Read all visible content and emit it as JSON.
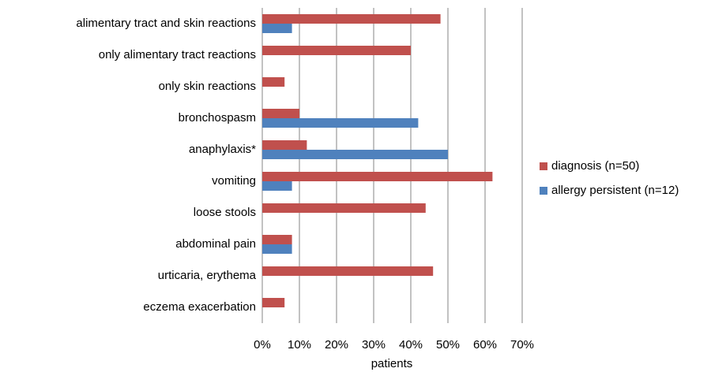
{
  "chart_data": {
    "type": "bar",
    "orientation": "horizontal",
    "x_label": "patients",
    "categories": [
      "alimentary tract and skin reactions",
      "only alimentary tract reactions",
      "only skin reactions",
      "bronchospasm",
      "anaphylaxis*",
      "vomiting",
      "loose stools",
      "abdominal pain",
      "urticaria, erythema",
      "eczema exacerbation"
    ],
    "series": [
      {
        "name": "diagnosis (n=50)",
        "color": "#c0504d",
        "values": [
          48,
          40,
          6,
          10,
          12,
          62,
          44,
          8,
          46,
          6
        ]
      },
      {
        "name": "allergy persistent (n=12)",
        "color": "#4f81bd",
        "values": [
          8,
          0,
          0,
          42,
          50,
          8,
          0,
          8,
          0,
          0
        ]
      }
    ],
    "xlim": [
      0,
      70
    ],
    "xticks": [
      {
        "value": 0,
        "label": "0%"
      },
      {
        "value": 10,
        "label": "10%"
      },
      {
        "value": 20,
        "label": "20%"
      },
      {
        "value": 30,
        "label": "30%"
      },
      {
        "value": 40,
        "label": "40%"
      },
      {
        "value": 50,
        "label": "50%"
      },
      {
        "value": 60,
        "label": "60%"
      },
      {
        "value": 70,
        "label": "70%"
      }
    ],
    "grid": true,
    "legend": "right"
  }
}
